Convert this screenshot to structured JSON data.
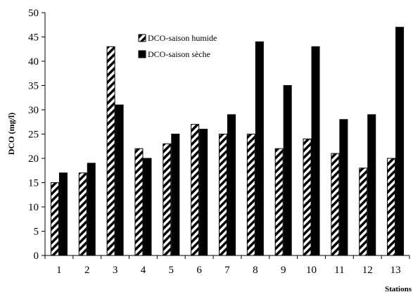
{
  "chart_data": {
    "type": "bar",
    "title": "",
    "xlabel": "Stations",
    "ylabel": "DCO (mg/l)",
    "ylim": [
      0,
      50
    ],
    "yticks": [
      0,
      5,
      10,
      15,
      20,
      25,
      30,
      35,
      40,
      45,
      50
    ],
    "categories": [
      "1",
      "2",
      "3",
      "4",
      "5",
      "6",
      "7",
      "8",
      "9",
      "10",
      "11",
      "12",
      "13"
    ],
    "series": [
      {
        "name": "DCO-saison humide",
        "pattern": "diagonal-hatch",
        "color": "#000000",
        "values": [
          15,
          17,
          43,
          22,
          23,
          27,
          25,
          25,
          22,
          24,
          21,
          18,
          20
        ]
      },
      {
        "name": "DCO-saison sèche",
        "pattern": "solid",
        "color": "#000000",
        "values": [
          17,
          19,
          31,
          20,
          25,
          26,
          29,
          44,
          35,
          43,
          28,
          29,
          47
        ]
      }
    ],
    "grid": false,
    "legend_position": "top-center"
  }
}
